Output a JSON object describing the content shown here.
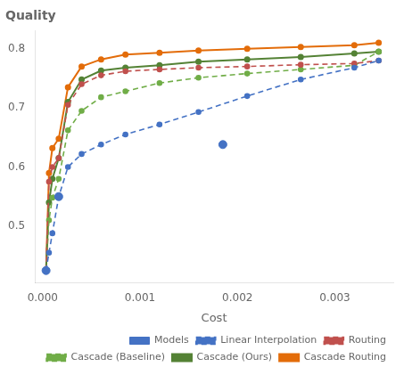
{
  "chart_data": {
    "type": "line",
    "title": "Quality",
    "xlabel": "Cost",
    "xlim": [
      -8e-05,
      0.0036
    ],
    "ylim": [
      0.405,
      0.83
    ],
    "xticks": [
      {
        "value": 0.0,
        "label": "0.000"
      },
      {
        "value": 0.001,
        "label": "0.001"
      },
      {
        "value": 0.002,
        "label": "0.002"
      },
      {
        "value": 0.003,
        "label": "0.003"
      }
    ],
    "yticks": [
      0.5,
      0.6,
      0.7,
      0.8
    ],
    "grid": false,
    "legend": "lower right",
    "series": [
      {
        "name": "Models",
        "type": "scatter",
        "color": "#4472c4",
        "marker": "circle",
        "x": [
          3.5e-05,
          0.000165,
          0.00185
        ],
        "values": [
          0.425,
          0.55,
          0.638
        ]
      },
      {
        "name": "Linear Interpolation",
        "type": "line",
        "color": "#4472c4",
        "line_style": "dashed",
        "marker": "circle",
        "x": [
          3.5e-05,
          6.5e-05,
          0.0001,
          0.000165,
          0.00026,
          0.0004,
          0.0006,
          0.00085,
          0.0012,
          0.0016,
          0.0021,
          0.00265,
          0.0032,
          0.00345
        ],
        "values": [
          0.425,
          0.455,
          0.488,
          0.55,
          0.6,
          0.622,
          0.638,
          0.655,
          0.672,
          0.693,
          0.72,
          0.748,
          0.768,
          0.78
        ]
      },
      {
        "name": "Routing",
        "type": "line",
        "color": "#c0504d",
        "line_style": "dashed",
        "marker": "circle",
        "x": [
          3.5e-05,
          6.5e-05,
          0.0001,
          0.000165,
          0.00026,
          0.0004,
          0.0006,
          0.00085,
          0.0012,
          0.0016,
          0.0021,
          0.00265,
          0.0032,
          0.00345
        ],
        "values": [
          0.425,
          0.575,
          0.6,
          0.615,
          0.705,
          0.74,
          0.755,
          0.762,
          0.765,
          0.768,
          0.77,
          0.773,
          0.775,
          0.78
        ]
      },
      {
        "name": "Cascade (Baseline)",
        "type": "line",
        "color": "#70ad47",
        "line_style": "dashed",
        "marker": "circle",
        "x": [
          3.5e-05,
          6.5e-05,
          0.0001,
          0.000165,
          0.00026,
          0.0004,
          0.0006,
          0.00085,
          0.0012,
          0.0016,
          0.0021,
          0.00265,
          0.0032,
          0.00345
        ],
        "values": [
          0.425,
          0.51,
          0.548,
          0.58,
          0.662,
          0.695,
          0.718,
          0.728,
          0.742,
          0.751,
          0.758,
          0.765,
          0.772,
          0.795
        ]
      },
      {
        "name": "Cascade (Ours)",
        "type": "line",
        "color": "#548235",
        "line_style": "solid",
        "marker": "circle",
        "x": [
          3.5e-05,
          6.5e-05,
          0.0001,
          0.000165,
          0.00026,
          0.0004,
          0.0006,
          0.00085,
          0.0012,
          0.0016,
          0.0021,
          0.00265,
          0.0032,
          0.00345
        ],
        "values": [
          0.425,
          0.54,
          0.58,
          0.615,
          0.71,
          0.748,
          0.763,
          0.768,
          0.772,
          0.778,
          0.782,
          0.786,
          0.792,
          0.795
        ]
      },
      {
        "name": "Cascade Routing",
        "type": "line",
        "color": "#e36c09",
        "line_style": "solid",
        "marker": "circle",
        "x": [
          3.5e-05,
          6.5e-05,
          0.0001,
          0.000165,
          0.00026,
          0.0004,
          0.0006,
          0.00085,
          0.0012,
          0.0016,
          0.0021,
          0.00265,
          0.0032,
          0.00345
        ],
        "values": [
          0.425,
          0.59,
          0.632,
          0.648,
          0.735,
          0.77,
          0.782,
          0.79,
          0.793,
          0.797,
          0.8,
          0.803,
          0.806,
          0.81
        ]
      }
    ]
  }
}
